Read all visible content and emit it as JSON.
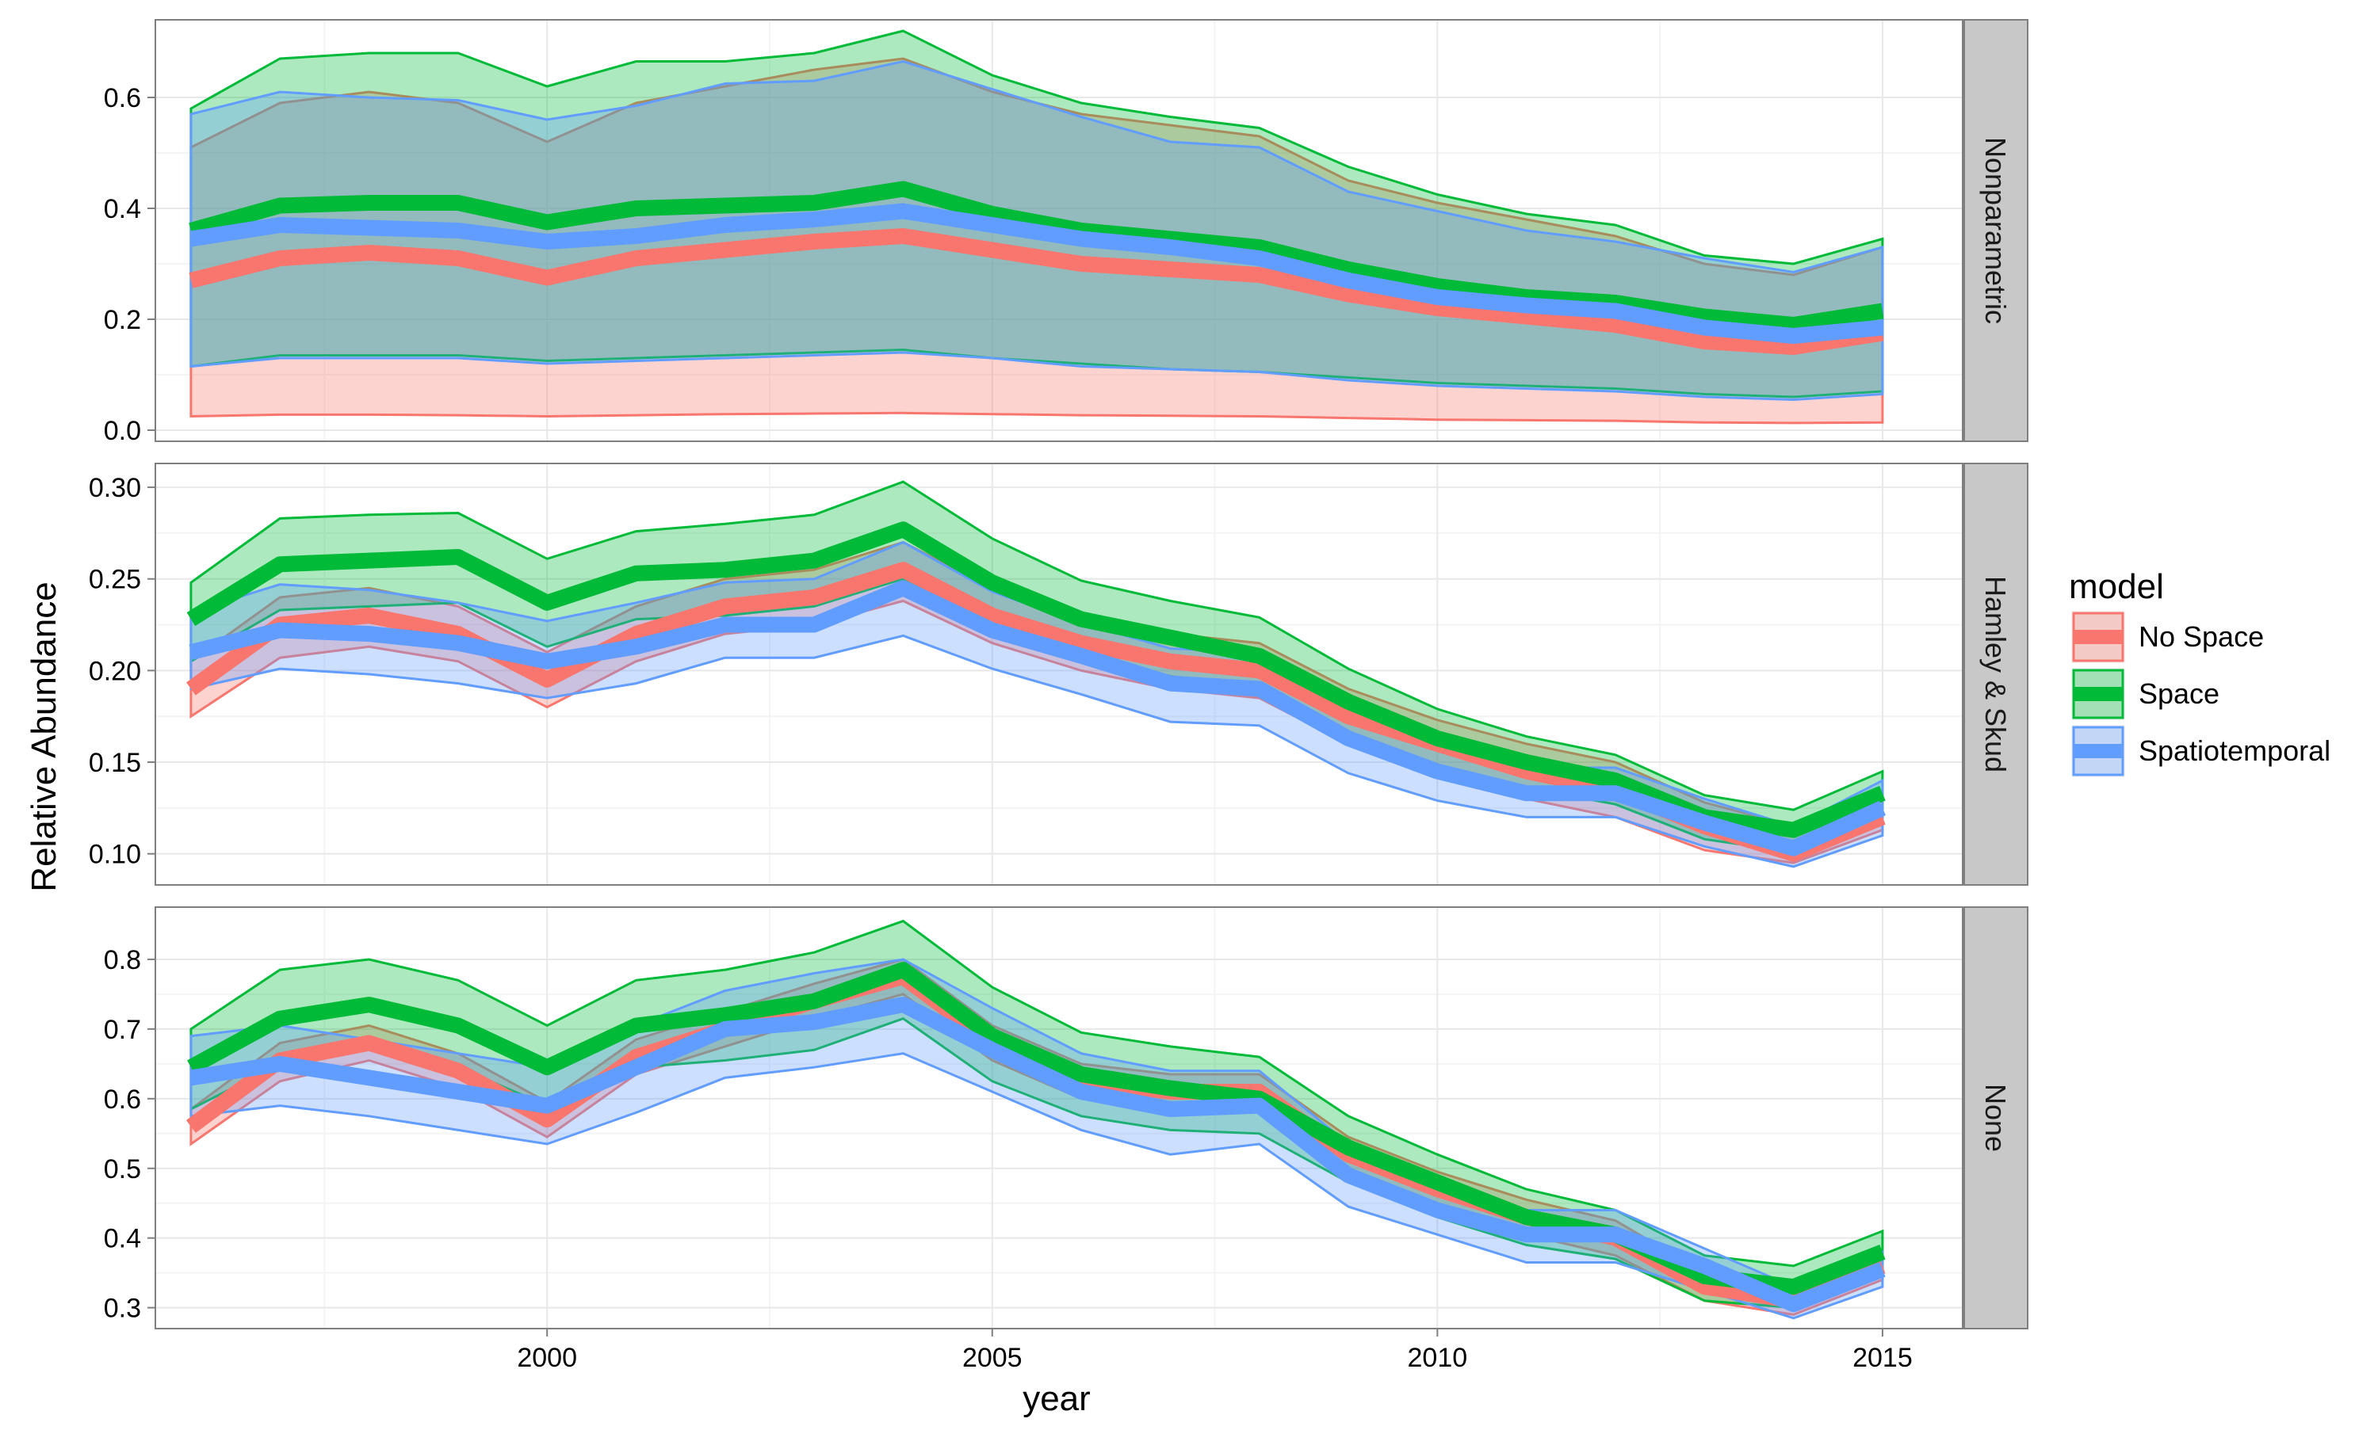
{
  "chart_data": {
    "type": "area",
    "xlabel": "year",
    "ylabel": "Relative Abundance",
    "x_ticks": [
      2000,
      2005,
      2010,
      2015
    ],
    "xlim": [
      1995.6,
      2015.9
    ],
    "legend": {
      "title": "model",
      "placement": "right",
      "entries": [
        {
          "name": "No Space",
          "color": "#F8766D"
        },
        {
          "name": "Space",
          "color": "#00BA38"
        },
        {
          "name": "Spatiotemporal",
          "color": "#619CFF"
        }
      ]
    },
    "panels": [
      {
        "strip_label": "Nonparametric",
        "ylim": [
          -0.02,
          0.74
        ],
        "y_ticks": [
          0.0,
          0.2,
          0.4,
          0.6
        ],
        "y_tick_labels": [
          "0.0",
          "0.2",
          "0.4",
          "0.6"
        ],
        "x": [
          1996,
          1997,
          1998,
          1999,
          2000,
          2001,
          2002,
          2003,
          2004,
          2005,
          2006,
          2007,
          2008,
          2009,
          2010,
          2011,
          2012,
          2013,
          2014,
          2015
        ],
        "series": [
          {
            "name": "No Space",
            "mean": [
              0.27,
              0.31,
              0.32,
              0.31,
              0.275,
              0.31,
              0.325,
              0.34,
              0.35,
              0.325,
              0.3,
              0.29,
              0.28,
              0.245,
              0.22,
              0.205,
              0.19,
              0.16,
              0.15,
              0.175
            ],
            "lower": [
              0.025,
              0.028,
              0.028,
              0.027,
              0.025,
              0.027,
              0.029,
              0.03,
              0.031,
              0.029,
              0.027,
              0.026,
              0.025,
              0.022,
              0.019,
              0.018,
              0.017,
              0.014,
              0.013,
              0.014
            ],
            "upper": [
              0.51,
              0.59,
              0.61,
              0.59,
              0.52,
              0.59,
              0.62,
              0.65,
              0.67,
              0.61,
              0.57,
              0.55,
              0.53,
              0.45,
              0.41,
              0.38,
              0.35,
              0.3,
              0.28,
              0.33
            ]
          },
          {
            "name": "Space",
            "mean": [
              0.36,
              0.405,
              0.41,
              0.41,
              0.375,
              0.4,
              0.405,
              0.41,
              0.435,
              0.39,
              0.36,
              0.345,
              0.33,
              0.29,
              0.26,
              0.24,
              0.23,
              0.205,
              0.19,
              0.215
            ],
            "lower": [
              0.115,
              0.135,
              0.135,
              0.135,
              0.125,
              0.13,
              0.135,
              0.14,
              0.145,
              0.13,
              0.12,
              0.11,
              0.105,
              0.095,
              0.085,
              0.08,
              0.075,
              0.065,
              0.06,
              0.07
            ],
            "upper": [
              0.58,
              0.67,
              0.68,
              0.68,
              0.62,
              0.665,
              0.665,
              0.68,
              0.72,
              0.64,
              0.59,
              0.565,
              0.545,
              0.475,
              0.425,
              0.39,
              0.37,
              0.315,
              0.3,
              0.345
            ]
          },
          {
            "name": "Spatiotemporal",
            "mean": [
              0.345,
              0.37,
              0.365,
              0.36,
              0.34,
              0.35,
              0.37,
              0.38,
              0.395,
              0.37,
              0.345,
              0.33,
              0.31,
              0.27,
              0.24,
              0.225,
              0.215,
              0.185,
              0.17,
              0.185
            ],
            "lower": [
              0.115,
              0.13,
              0.13,
              0.13,
              0.12,
              0.125,
              0.13,
              0.135,
              0.14,
              0.13,
              0.115,
              0.11,
              0.105,
              0.09,
              0.08,
              0.075,
              0.07,
              0.06,
              0.055,
              0.065
            ],
            "upper": [
              0.57,
              0.61,
              0.6,
              0.595,
              0.56,
              0.585,
              0.625,
              0.63,
              0.665,
              0.615,
              0.565,
              0.52,
              0.51,
              0.43,
              0.395,
              0.36,
              0.34,
              0.31,
              0.285,
              0.33
            ]
          }
        ]
      },
      {
        "strip_label": "Hamley & Skud",
        "ylim": [
          0.083,
          0.313
        ],
        "y_ticks": [
          0.1,
          0.15,
          0.2,
          0.25,
          0.3
        ],
        "y_tick_labels": [
          "0.10",
          "0.15",
          "0.20",
          "0.25",
          "0.30"
        ],
        "x": [
          1996,
          1997,
          1998,
          1999,
          2000,
          2001,
          2002,
          2003,
          2004,
          2005,
          2006,
          2007,
          2008,
          2009,
          2010,
          2011,
          2012,
          2013,
          2014,
          2015
        ],
        "series": [
          {
            "name": "No Space",
            "mean": [
              0.19,
              0.225,
              0.23,
              0.22,
              0.195,
              0.22,
              0.235,
              0.24,
              0.255,
              0.23,
              0.215,
              0.205,
              0.2,
              0.175,
              0.16,
              0.145,
              0.135,
              0.115,
              0.1,
              0.12
            ],
            "lower": [
              0.175,
              0.207,
              0.213,
              0.205,
              0.18,
              0.205,
              0.22,
              0.225,
              0.238,
              0.215,
              0.2,
              0.19,
              0.185,
              0.16,
              0.145,
              0.13,
              0.12,
              0.102,
              0.095,
              0.113
            ],
            "upper": [
              0.205,
              0.24,
              0.245,
              0.235,
              0.21,
              0.235,
              0.25,
              0.255,
              0.27,
              0.245,
              0.23,
              0.22,
              0.215,
              0.19,
              0.173,
              0.16,
              0.15,
              0.128,
              0.115,
              0.13
            ]
          },
          {
            "name": "Space",
            "mean": [
              0.228,
              0.258,
              0.26,
              0.262,
              0.237,
              0.253,
              0.255,
              0.26,
              0.277,
              0.248,
              0.228,
              0.218,
              0.208,
              0.183,
              0.163,
              0.15,
              0.14,
              0.12,
              0.113,
              0.133
            ],
            "lower": [
              0.205,
              0.233,
              0.235,
              0.237,
              0.213,
              0.228,
              0.23,
              0.235,
              0.25,
              0.223,
              0.207,
              0.197,
              0.187,
              0.163,
              0.148,
              0.136,
              0.127,
              0.108,
              0.101,
              0.12
            ],
            "upper": [
              0.248,
              0.283,
              0.285,
              0.286,
              0.261,
              0.276,
              0.28,
              0.285,
              0.303,
              0.272,
              0.249,
              0.238,
              0.229,
              0.201,
              0.179,
              0.164,
              0.154,
              0.132,
              0.124,
              0.145
            ]
          },
          {
            "name": "Spatiotemporal",
            "mean": [
              0.21,
              0.222,
              0.22,
              0.215,
              0.205,
              0.213,
              0.225,
              0.225,
              0.245,
              0.222,
              0.208,
              0.193,
              0.19,
              0.163,
              0.145,
              0.133,
              0.133,
              0.117,
              0.103,
              0.125
            ],
            "lower": [
              0.19,
              0.201,
              0.198,
              0.193,
              0.185,
              0.193,
              0.207,
              0.207,
              0.219,
              0.201,
              0.187,
              0.172,
              0.17,
              0.144,
              0.129,
              0.12,
              0.12,
              0.104,
              0.093,
              0.11
            ],
            "upper": [
              0.232,
              0.247,
              0.244,
              0.237,
              0.227,
              0.237,
              0.248,
              0.25,
              0.27,
              0.243,
              0.226,
              0.212,
              0.21,
              0.18,
              0.161,
              0.147,
              0.147,
              0.13,
              0.115,
              0.14
            ]
          }
        ]
      },
      {
        "strip_label": "None",
        "ylim": [
          0.27,
          0.875
        ],
        "y_ticks": [
          0.3,
          0.4,
          0.5,
          0.6,
          0.7,
          0.8
        ],
        "y_tick_labels": [
          "0.3",
          "0.4",
          "0.5",
          "0.6",
          "0.7",
          "0.8"
        ],
        "x": [
          1996,
          1997,
          1998,
          1999,
          2000,
          2001,
          2002,
          2003,
          2004,
          2005,
          2006,
          2007,
          2008,
          2009,
          2010,
          2011,
          2012,
          2013,
          2014,
          2015
        ],
        "series": [
          {
            "name": "No Space",
            "mean": [
              0.56,
              0.655,
              0.68,
              0.64,
              0.57,
              0.66,
              0.7,
              0.74,
              0.775,
              0.68,
              0.625,
              0.61,
              0.61,
              0.52,
              0.47,
              0.43,
              0.4,
              0.33,
              0.31,
              0.36
            ],
            "lower": [
              0.535,
              0.625,
              0.655,
              0.615,
              0.545,
              0.635,
              0.675,
              0.715,
              0.75,
              0.655,
              0.6,
              0.585,
              0.585,
              0.495,
              0.445,
              0.405,
              0.375,
              0.31,
              0.29,
              0.34
            ],
            "upper": [
              0.585,
              0.68,
              0.705,
              0.665,
              0.595,
              0.685,
              0.725,
              0.765,
              0.8,
              0.705,
              0.65,
              0.635,
              0.635,
              0.545,
              0.495,
              0.455,
              0.425,
              0.35,
              0.33,
              0.38
            ]
          },
          {
            "name": "Space",
            "mean": [
              0.645,
              0.715,
              0.735,
              0.705,
              0.645,
              0.705,
              0.72,
              0.74,
              0.785,
              0.69,
              0.635,
              0.615,
              0.6,
              0.53,
              0.48,
              0.43,
              0.405,
              0.345,
              0.33,
              0.38
            ],
            "lower": [
              0.585,
              0.65,
              0.675,
              0.645,
              0.59,
              0.645,
              0.655,
              0.67,
              0.715,
              0.625,
              0.575,
              0.555,
              0.55,
              0.48,
              0.43,
              0.39,
              0.37,
              0.31,
              0.3,
              0.35
            ],
            "upper": [
              0.7,
              0.785,
              0.8,
              0.77,
              0.705,
              0.77,
              0.785,
              0.81,
              0.855,
              0.76,
              0.695,
              0.675,
              0.66,
              0.575,
              0.52,
              0.47,
              0.44,
              0.375,
              0.36,
              0.41
            ]
          },
          {
            "name": "Spatiotemporal",
            "mean": [
              0.63,
              0.65,
              0.63,
              0.61,
              0.59,
              0.645,
              0.7,
              0.71,
              0.735,
              0.67,
              0.61,
              0.585,
              0.59,
              0.49,
              0.44,
              0.405,
              0.405,
              0.36,
              0.305,
              0.355
            ],
            "lower": [
              0.575,
              0.59,
              0.575,
              0.555,
              0.535,
              0.58,
              0.63,
              0.645,
              0.665,
              0.61,
              0.555,
              0.52,
              0.535,
              0.445,
              0.405,
              0.365,
              0.365,
              0.325,
              0.285,
              0.33
            ],
            "upper": [
              0.69,
              0.705,
              0.685,
              0.665,
              0.645,
              0.705,
              0.755,
              0.78,
              0.8,
              0.73,
              0.665,
              0.64,
              0.64,
              0.535,
              0.48,
              0.44,
              0.44,
              0.385,
              0.33,
              0.38
            ]
          }
        ]
      }
    ]
  }
}
